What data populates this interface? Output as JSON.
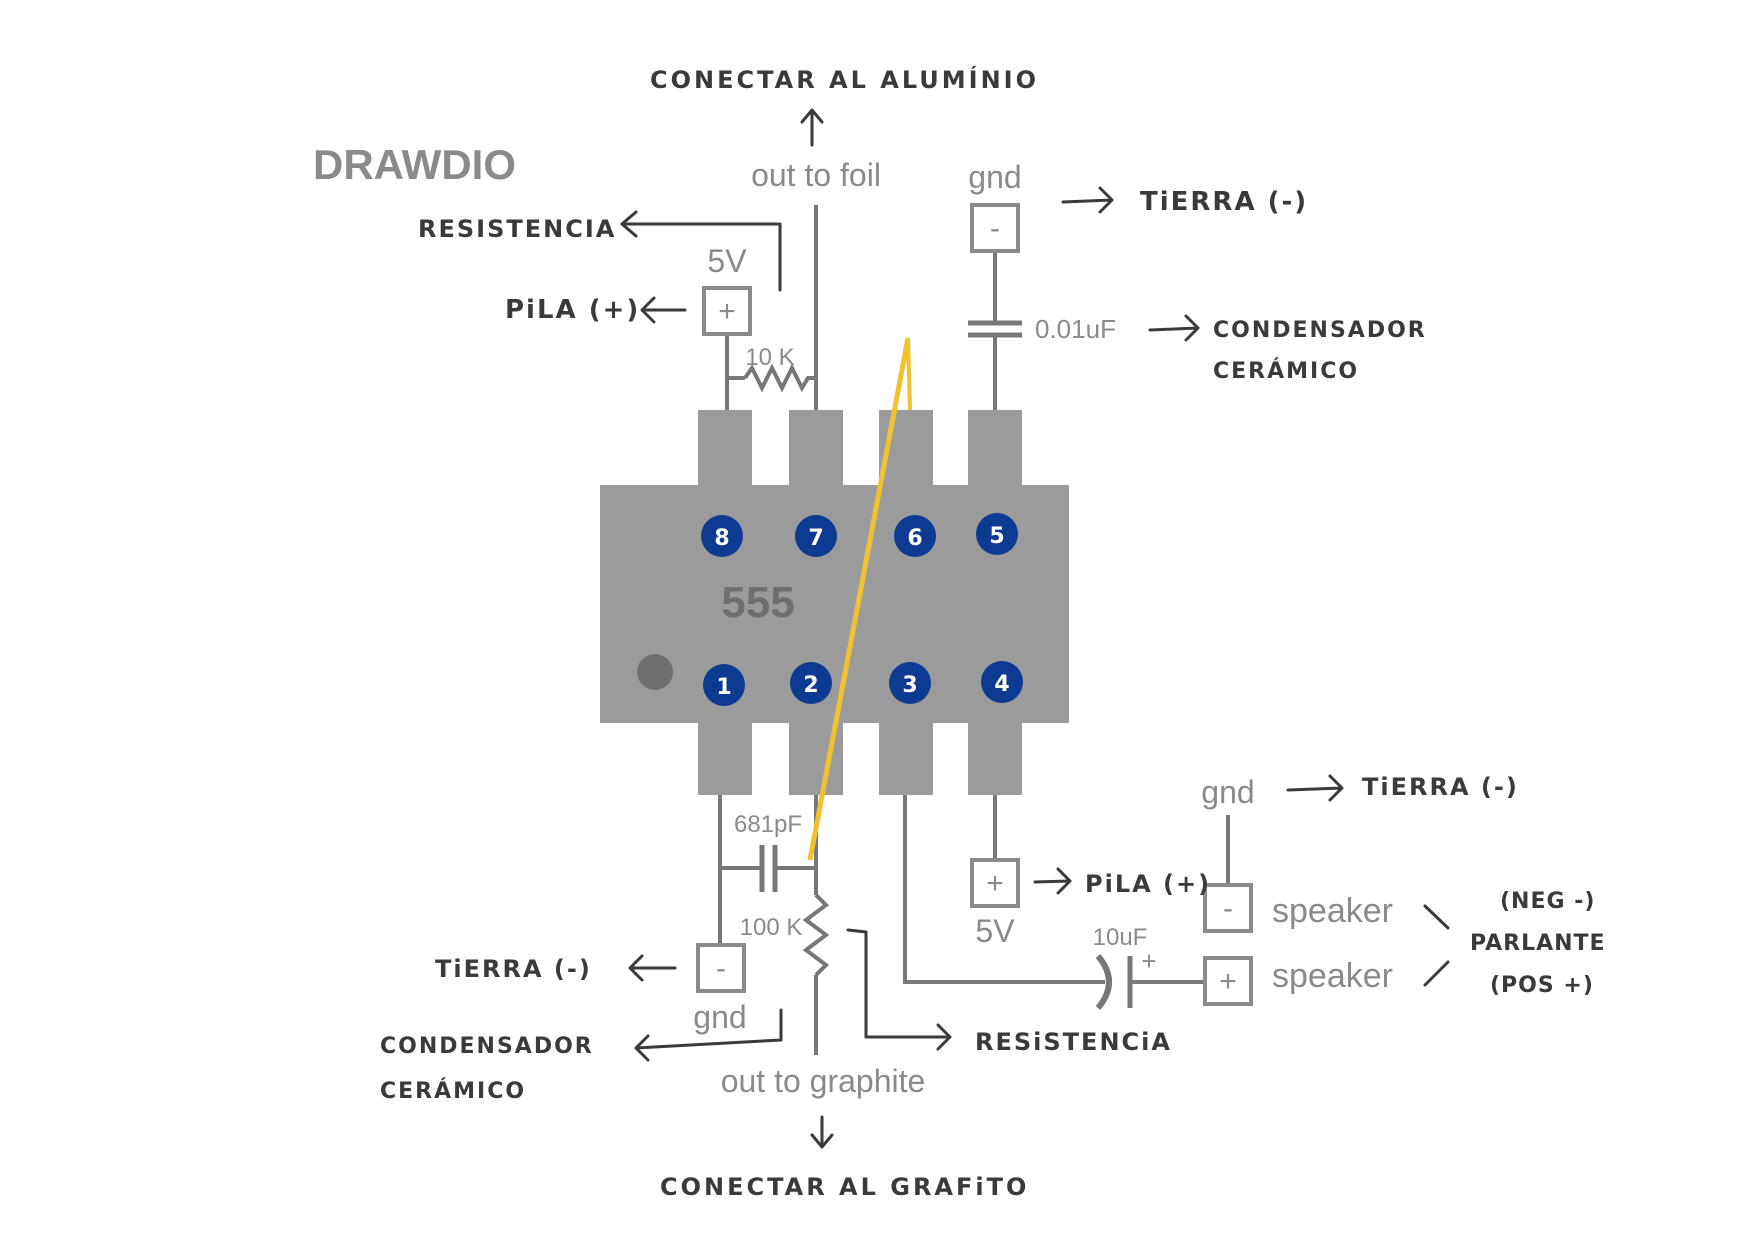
{
  "title": "DRAWDIO",
  "chip": {
    "label": "555",
    "pins": [
      "8",
      "7",
      "6",
      "5",
      "1",
      "2",
      "3",
      "4"
    ]
  },
  "printed": {
    "out_to_foil": "out to foil",
    "gnd_top": "gnd",
    "minus": "-",
    "plus": "+",
    "v5_top": "5V",
    "r10k": "10 K",
    "c001": "0.01uF",
    "c681": "681pF",
    "r100k": "100 K",
    "gnd_bottom": "gnd",
    "out_to_graphite": "out to graphite",
    "v5_bottom": "5V",
    "gnd_right": "gnd",
    "c10u": "10uF",
    "speaker_1": "speaker",
    "speaker_2": "speaker"
  },
  "handwritten": {
    "conectar_aluminio": "CONECTAR AL ALUMÍNIO",
    "resistencia_top": "RESISTENCIA",
    "pila_top": "PiLA (+)",
    "tierra_top": "TiERRA (-)",
    "condensador_top_1": "CONDENSADOR",
    "condensador_top_2": "CERÁMICO",
    "tierra_right": "TiERRA (-)",
    "pila_bottom": "PiLA (+)",
    "neg": "(NEG -)",
    "parlante": "PARLANTE",
    "pos": "(POS +)",
    "tierra_bottom": "TiERRA (-)",
    "condensador_bottom_1": "CONDENSADOR",
    "condensador_bottom_2": "CERÁMICO",
    "resistencia_bottom": "RESiSTENCiA",
    "conectar_grafito": "CONECTAR AL GRAFiTO"
  },
  "colors": {
    "chip": "#9b9b9b",
    "pin_badge": "#0d3b91",
    "jumper": "#f2c12e",
    "ink": "#3a3a3a"
  }
}
